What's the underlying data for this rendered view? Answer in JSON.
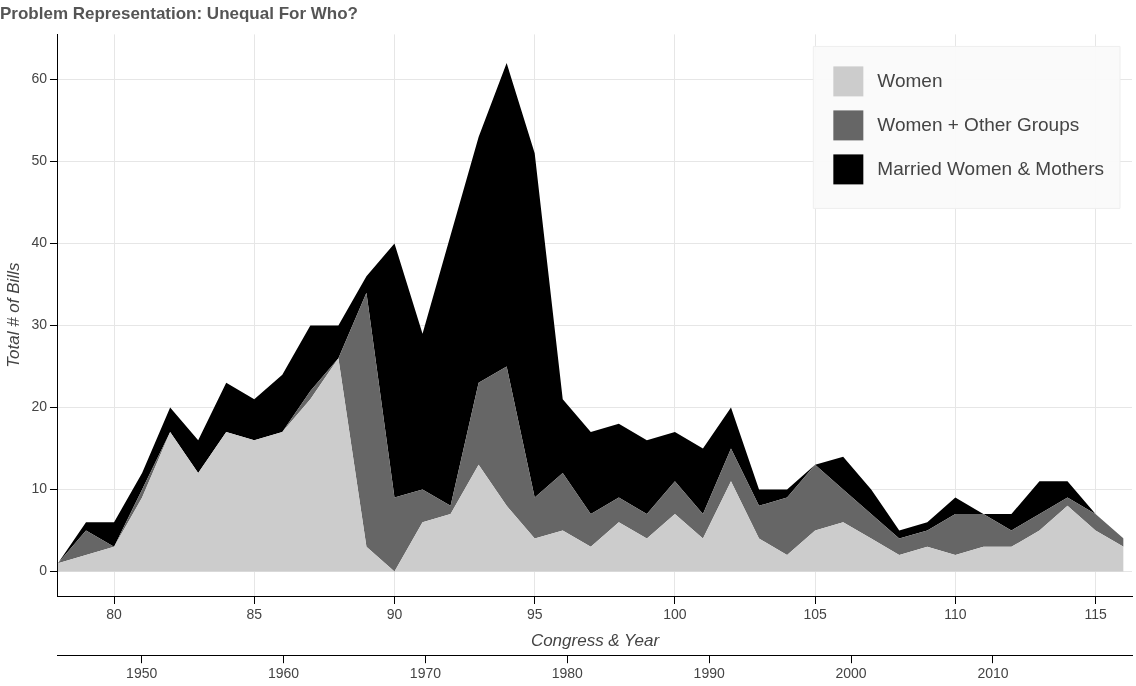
{
  "chart_data": {
    "type": "area",
    "title": "Problem Representation: Unequal For Who?",
    "xlabel": "Congress & Year",
    "ylabel": "Total # of Bills",
    "stacked": true,
    "x": [
      78,
      79,
      80,
      81,
      82,
      83,
      84,
      85,
      86,
      87,
      88,
      89,
      90,
      91,
      92,
      93,
      94,
      95,
      96,
      97,
      98,
      99,
      100,
      101,
      102,
      103,
      104,
      105,
      106,
      107,
      108,
      109,
      110,
      111,
      112,
      113,
      114,
      115,
      116
    ],
    "series": [
      {
        "name": "Women",
        "color": "#cccccc",
        "values": [
          1,
          2,
          3,
          9,
          17,
          12,
          17,
          16,
          17,
          21,
          26,
          3,
          0,
          6,
          7,
          13,
          8,
          4,
          5,
          3,
          6,
          4,
          7,
          4,
          11,
          4,
          2,
          5,
          6,
          4,
          2,
          3,
          2,
          3,
          3,
          5,
          8,
          5,
          3
        ]
      },
      {
        "name": "Women + Other Groups",
        "color": "#666666",
        "values": [
          0,
          3,
          0,
          1,
          0,
          0,
          0,
          0,
          0,
          1,
          0,
          31,
          9,
          4,
          1,
          10,
          17,
          5,
          7,
          4,
          3,
          3,
          4,
          3,
          4,
          4,
          7,
          8,
          4,
          3,
          2,
          2,
          5,
          4,
          2,
          2,
          1,
          2,
          1
        ]
      },
      {
        "name": "Married Women & Mothers",
        "color": "#000000",
        "values": [
          0,
          1,
          3,
          2,
          3,
          4,
          6,
          5,
          7,
          8,
          4,
          2,
          31,
          19,
          33,
          30,
          37,
          42,
          9,
          10,
          9,
          9,
          6,
          8,
          5,
          2,
          1,
          0,
          4,
          3,
          1,
          1,
          2,
          0,
          2,
          4,
          2,
          0,
          0
        ]
      }
    ],
    "xlim": [
      78,
      116.3
    ],
    "xticks": [
      80,
      85,
      90,
      95,
      100,
      105,
      110,
      115
    ],
    "x2lim": [
      1944.1,
      2019.8
    ],
    "x2ticks": [
      1950,
      1960,
      1970,
      1980,
      1990,
      2000,
      2010
    ],
    "ylim": [
      -3,
      65.5
    ],
    "yticks": [
      0,
      10,
      20,
      30,
      40,
      50,
      60
    ],
    "grid": true,
    "legend": "top right"
  }
}
